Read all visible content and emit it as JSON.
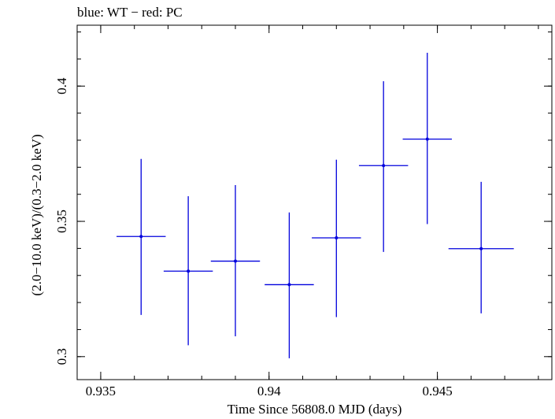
{
  "chart_data": {
    "type": "scatter",
    "title": "blue: WT − red: PC",
    "xlabel": "Time Since 56808.0 MJD (days)",
    "ylabel": "(2.0−10.0 keV)/(0.3−2.0 keV)",
    "xlim": [
      0.9343,
      0.9484
    ],
    "ylim": [
      0.2915,
      0.4225
    ],
    "xticks": [
      0.935,
      0.94,
      0.945
    ],
    "xtick_labels": [
      "0.935",
      "0.94",
      "0.945"
    ],
    "yticks": [
      0.3,
      0.35,
      0.4
    ],
    "ytick_labels": [
      "0.3",
      "0.35",
      "0.4"
    ],
    "series": [
      {
        "name": "WT",
        "color": "#0000dd",
        "points": [
          {
            "x": 0.9362,
            "y": 0.3444,
            "xerr": 0.00073,
            "ylo": 0.3154,
            "yhi": 0.3731
          },
          {
            "x": 0.9376,
            "y": 0.3316,
            "xerr": 0.00073,
            "ylo": 0.3042,
            "yhi": 0.3593
          },
          {
            "x": 0.939,
            "y": 0.3353,
            "xerr": 0.00073,
            "ylo": 0.3075,
            "yhi": 0.3634
          },
          {
            "x": 0.9406,
            "y": 0.3266,
            "xerr": 0.00073,
            "ylo": 0.2994,
            "yhi": 0.3533
          },
          {
            "x": 0.942,
            "y": 0.3439,
            "xerr": 0.00073,
            "ylo": 0.3146,
            "yhi": 0.3728
          },
          {
            "x": 0.9434,
            "y": 0.3706,
            "xerr": 0.00073,
            "ylo": 0.3387,
            "yhi": 0.4018
          },
          {
            "x": 0.9447,
            "y": 0.3804,
            "xerr": 0.00073,
            "ylo": 0.349,
            "yhi": 0.4123
          },
          {
            "x": 0.9463,
            "y": 0.3399,
            "xerr": 0.00097,
            "ylo": 0.316,
            "yhi": 0.3646
          }
        ]
      }
    ]
  }
}
